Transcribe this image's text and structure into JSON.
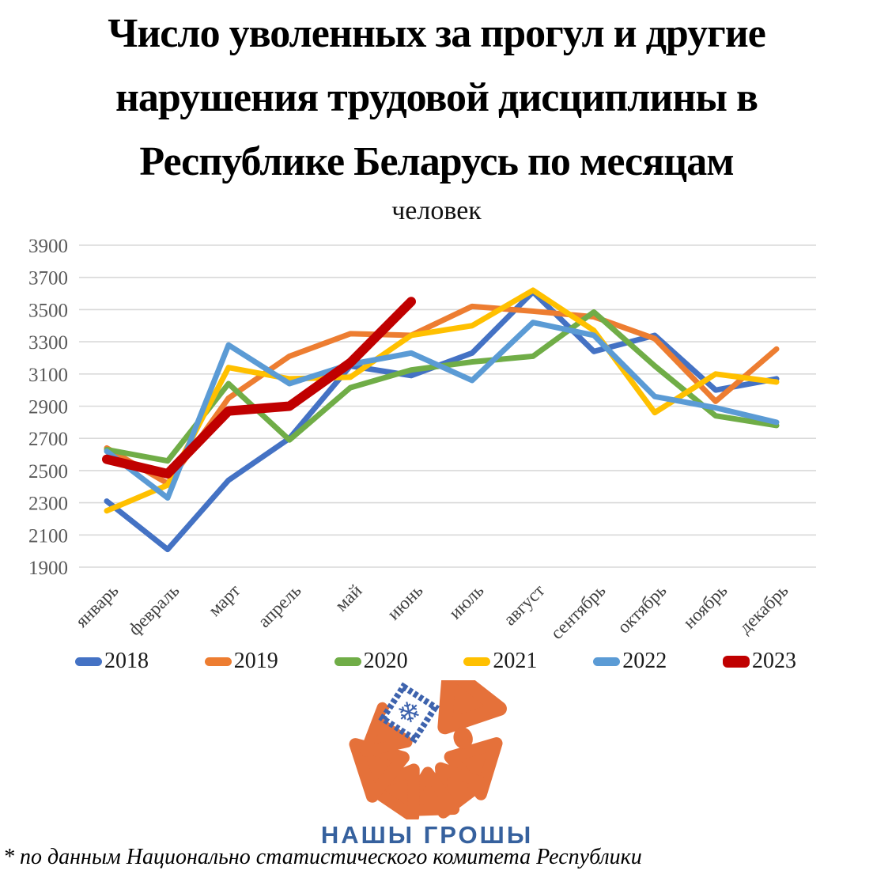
{
  "title": {
    "lines": [
      "Число уволенных за прогул и другие",
      "нарушения трудовой дисциплины в",
      "Республике Беларусь по месяцам"
    ],
    "subtitle": "человек"
  },
  "chart_data": {
    "type": "line",
    "categories": [
      "январь",
      "февраль",
      "март",
      "апрель",
      "май",
      "июнь",
      "июль",
      "август",
      "сентябрь",
      "октябрь",
      "ноябрь",
      "декабрь"
    ],
    "series": [
      {
        "name": "2018",
        "color": "#4472C4",
        "width": 7,
        "values": [
          2310,
          2010,
          2440,
          2700,
          3150,
          3090,
          3230,
          3610,
          3240,
          3340,
          3000,
          3070
        ]
      },
      {
        "name": "2019",
        "color": "#ED7D31",
        "width": 7,
        "values": [
          2640,
          2420,
          2950,
          3210,
          3350,
          3340,
          3520,
          3490,
          3455,
          3320,
          2930,
          3255
        ]
      },
      {
        "name": "2020",
        "color": "#70AD47",
        "width": 7,
        "values": [
          2630,
          2560,
          3040,
          2690,
          3015,
          3125,
          3175,
          3210,
          3485,
          3150,
          2840,
          2780
        ]
      },
      {
        "name": "2021",
        "color": "#FFC000",
        "width": 7,
        "values": [
          2250,
          2410,
          3140,
          3070,
          3080,
          3340,
          3400,
          3620,
          3370,
          2860,
          3100,
          3050
        ]
      },
      {
        "name": "2022",
        "color": "#5B9BD5",
        "width": 7,
        "values": [
          2620,
          2330,
          3280,
          3040,
          3160,
          3230,
          3060,
          3420,
          3340,
          2960,
          2890,
          2800
        ]
      },
      {
        "name": "2023",
        "color": "#C00000",
        "width": 12,
        "values": [
          2570,
          2480,
          2870,
          2900,
          3170,
          3550,
          null,
          null,
          null,
          null,
          null,
          null
        ]
      }
    ],
    "ylim": [
      1900,
      3900
    ],
    "ytick_step": 200,
    "grid": true,
    "legend_position": "bottom",
    "grid_color": "#D9D9D9",
    "ytick_color": "#595959",
    "xtick_color": "#3f3f3f"
  },
  "logo": {
    "text": "НАШЫ ГРОШЫ",
    "orange": "#E5713A",
    "blue": "#3E63AD",
    "snowflake_icon": "❄"
  },
  "footnote": "* по данным Национально статистического комитета Республики"
}
